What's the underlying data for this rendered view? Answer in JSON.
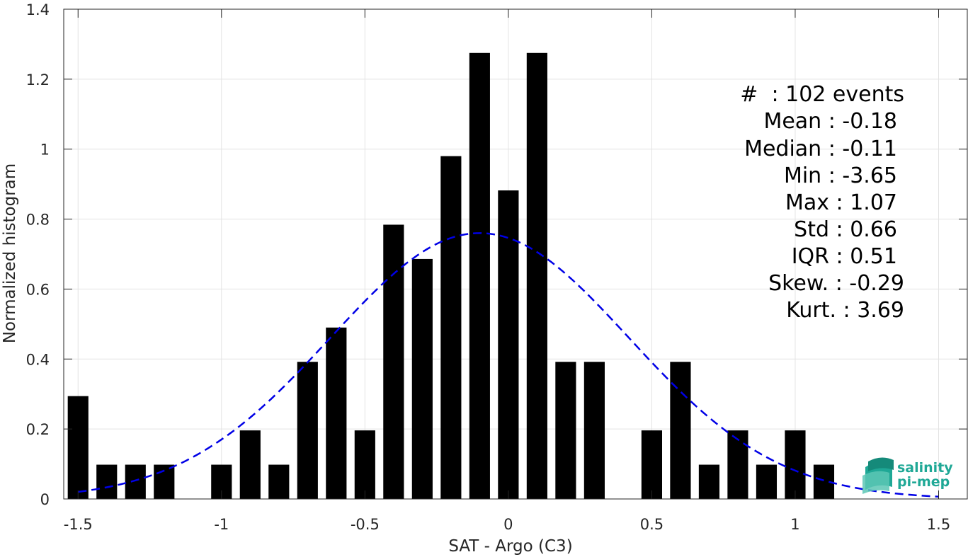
{
  "chart_data": {
    "type": "bar",
    "xlabel": "SAT - Argo (C3)",
    "ylabel": "Normalized histogram",
    "xlim": [
      -1.55,
      1.6
    ],
    "ylim": [
      0,
      1.4
    ],
    "xticks": [
      -1.5,
      -1,
      -0.5,
      0,
      0.5,
      1,
      1.5
    ],
    "xtick_labels": [
      "-1.5",
      "-1",
      "-0.5",
      "0",
      "0.5",
      "1",
      "1.5"
    ],
    "yticks": [
      0,
      0.2,
      0.4,
      0.6,
      0.8,
      1,
      1.2,
      1.4
    ],
    "ytick_labels": [
      "0",
      "0.2",
      "0.4",
      "0.6",
      "0.8",
      "1",
      "1.2",
      "1.4"
    ],
    "grid": true,
    "bin_width": 0.1,
    "bars": [
      {
        "x": -1.5,
        "y": 0.294
      },
      {
        "x": -1.4,
        "y": 0.098
      },
      {
        "x": -1.3,
        "y": 0.098
      },
      {
        "x": -1.2,
        "y": 0.098
      },
      {
        "x": -1.0,
        "y": 0.098
      },
      {
        "x": -0.9,
        "y": 0.196
      },
      {
        "x": -0.8,
        "y": 0.098
      },
      {
        "x": -0.7,
        "y": 0.392
      },
      {
        "x": -0.6,
        "y": 0.49
      },
      {
        "x": -0.5,
        "y": 0.196
      },
      {
        "x": -0.4,
        "y": 0.784
      },
      {
        "x": -0.3,
        "y": 0.686
      },
      {
        "x": -0.2,
        "y": 0.98
      },
      {
        "x": -0.1,
        "y": 1.275
      },
      {
        "x": 0.0,
        "y": 0.882
      },
      {
        "x": 0.1,
        "y": 1.275
      },
      {
        "x": 0.2,
        "y": 0.392
      },
      {
        "x": 0.3,
        "y": 0.392
      },
      {
        "x": 0.5,
        "y": 0.196
      },
      {
        "x": 0.6,
        "y": 0.392
      },
      {
        "x": 0.7,
        "y": 0.098
      },
      {
        "x": 0.8,
        "y": 0.196
      },
      {
        "x": 0.9,
        "y": 0.098
      },
      {
        "x": 1.0,
        "y": 0.196
      },
      {
        "x": 1.1,
        "y": 0.098
      }
    ],
    "fit_curve": {
      "style": "dashed",
      "color": "#0000e6",
      "mean": -0.1,
      "std": 0.52,
      "peak": 0.76,
      "x_range": [
        -1.5,
        1.5
      ]
    },
    "bar_color": "#000000"
  },
  "stats": [
    "#  : 102 events",
    "Mean : -0.18",
    "Median : -0.11",
    "Min : -3.65",
    "Max : 1.07",
    "Std : 0.66",
    "IQR : 0.51",
    "Skew. : -0.29",
    "Kurt. : 3.69"
  ],
  "logo": {
    "line1": "salinity",
    "line2": "pi-mep",
    "color": "#1fa896"
  }
}
